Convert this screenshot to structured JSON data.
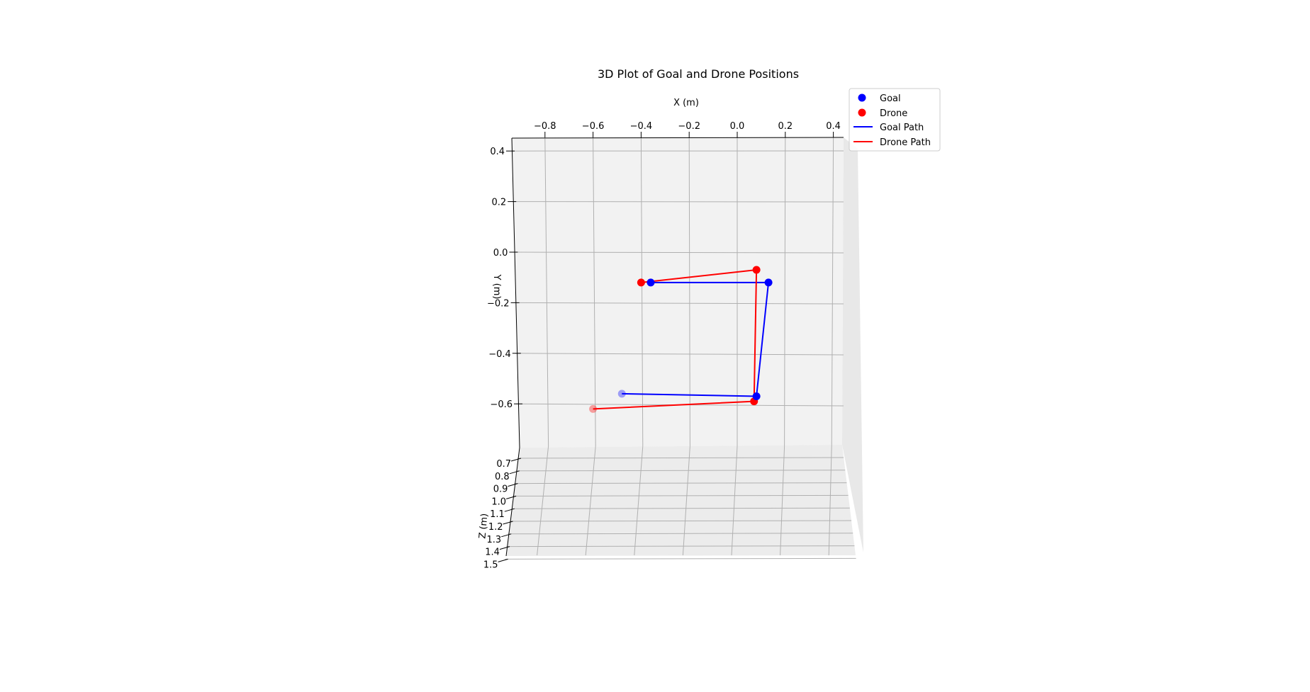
{
  "chart_data": {
    "type": "scatter",
    "projection": "3d",
    "title": "3D Plot of Goal and Drone Positions",
    "xlabel": "X (m)",
    "ylabel": "Y (m)",
    "zlabel": "Z (m)",
    "grid": true,
    "legend_position": "upper right",
    "x_ticks": [
      "−0.8",
      "−0.6",
      "−0.4",
      "−0.2",
      "0.0",
      "0.2",
      "0.4"
    ],
    "y_ticks": [
      "0.4",
      "0.2",
      "0.0",
      "−0.2",
      "−0.4",
      "−0.6"
    ],
    "z_ticks": [
      "0.7",
      "0.8",
      "0.9",
      "1.0",
      "1.1",
      "1.2",
      "1.3",
      "1.4",
      "1.5"
    ],
    "colors": {
      "goal": "#0000ff",
      "drone": "#ff0000",
      "pane": "#f2f2f2",
      "grid": "#b0b0b0"
    },
    "series": [
      {
        "name": "Goal",
        "kind": "scatter",
        "color": "#0000ff",
        "points": [
          {
            "x": -0.36,
            "y": -0.12,
            "z": 1.0
          },
          {
            "x": 0.13,
            "y": -0.12,
            "z": 1.0
          },
          {
            "x": 0.08,
            "y": -0.57,
            "z": 1.0
          },
          {
            "x": -0.48,
            "y": -0.56,
            "z": 0.7
          }
        ]
      },
      {
        "name": "Drone",
        "kind": "scatter",
        "color": "#ff0000",
        "points": [
          {
            "x": -0.4,
            "y": -0.12,
            "z": 0.9
          },
          {
            "x": 0.08,
            "y": -0.07,
            "z": 0.9
          },
          {
            "x": 0.07,
            "y": -0.59,
            "z": 1.0
          },
          {
            "x": -0.6,
            "y": -0.62,
            "z": 0.7
          }
        ]
      },
      {
        "name": "Goal Path",
        "kind": "line",
        "color": "#0000ff",
        "points": [
          {
            "x": -0.36,
            "y": -0.12
          },
          {
            "x": 0.13,
            "y": -0.12
          },
          {
            "x": 0.08,
            "y": -0.57
          },
          {
            "x": -0.48,
            "y": -0.56
          }
        ]
      },
      {
        "name": "Drone Path",
        "kind": "line",
        "color": "#ff0000",
        "points": [
          {
            "x": -0.4,
            "y": -0.12
          },
          {
            "x": 0.08,
            "y": -0.07
          },
          {
            "x": 0.07,
            "y": -0.59
          },
          {
            "x": -0.6,
            "y": -0.62
          }
        ]
      }
    ],
    "legend": [
      "Goal",
      "Drone",
      "Goal Path",
      "Drone Path"
    ]
  }
}
